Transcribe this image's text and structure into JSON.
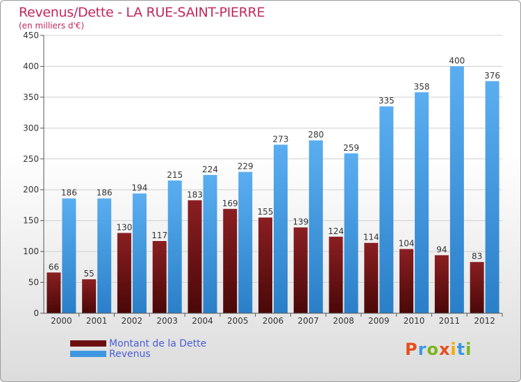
{
  "title": "Revenus/Dette - LA RUE-SAINT-PIERRE",
  "subtitle": "(en milliers d'€)",
  "legend": [
    {
      "label": "Montant de la Dette",
      "color": "#6b0f0f"
    },
    {
      "label": "Revenus",
      "color": "#3d97e0"
    }
  ],
  "logo": {
    "text": "Proxiti",
    "colors": [
      "#e84e1b",
      "#3d97e0",
      "#7ab51d",
      "#e84e1b",
      "#f2a900",
      "#3d97e0",
      "#7ab51d"
    ]
  },
  "chart_data": {
    "type": "bar",
    "categories": [
      "2000",
      "2001",
      "2002",
      "2003",
      "2004",
      "2005",
      "2006",
      "2007",
      "2008",
      "2009",
      "2010",
      "2011",
      "2012"
    ],
    "series": [
      {
        "name": "Montant de la Dette",
        "color": "#6b0f0f",
        "values": [
          66,
          55,
          130,
          117,
          183,
          169,
          155,
          139,
          124,
          114,
          104,
          94,
          83
        ]
      },
      {
        "name": "Revenus",
        "color": "#3d97e0",
        "values": [
          186,
          186,
          194,
          215,
          224,
          229,
          273,
          280,
          259,
          335,
          358,
          400,
          376
        ]
      }
    ],
    "ylim": [
      0,
      450
    ],
    "yticks": [
      0,
      50,
      100,
      150,
      200,
      250,
      300,
      350,
      400,
      450
    ],
    "grid": true
  }
}
